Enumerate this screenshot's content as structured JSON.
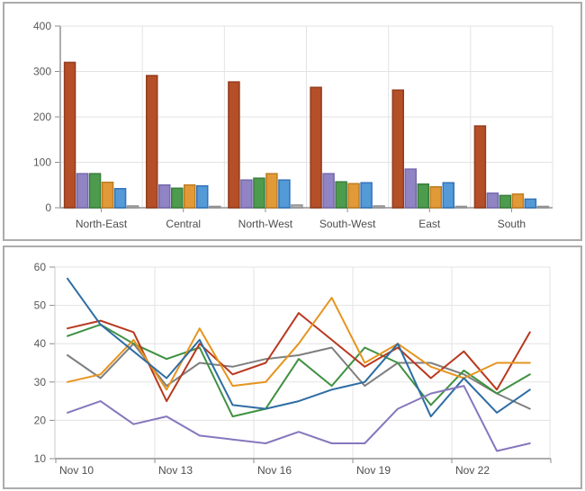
{
  "chart_data": [
    {
      "type": "bar",
      "title": "",
      "categories": [
        "North-East",
        "Central",
        "North-West",
        "South-West",
        "East",
        "South"
      ],
      "series": [
        {
          "name": "sienna",
          "color": "#b44f28",
          "border": "#933d1d",
          "values": [
            320,
            291,
            277,
            265,
            259,
            180
          ]
        },
        {
          "name": "purple",
          "color": "#9184c4",
          "border": "#746aae",
          "values": [
            75,
            50,
            61,
            75,
            85,
            32
          ]
        },
        {
          "name": "green",
          "color": "#4d9b4d",
          "border": "#3c7d3c",
          "values": [
            75,
            43,
            65,
            57,
            52,
            27
          ]
        },
        {
          "name": "orange",
          "color": "#e29a39",
          "border": "#bf7d20",
          "values": [
            56,
            50,
            75,
            53,
            46,
            30
          ]
        },
        {
          "name": "blue",
          "color": "#539ad7",
          "border": "#3573b9",
          "values": [
            42,
            48,
            61,
            55,
            55,
            19
          ]
        },
        {
          "name": "gray",
          "color": "#b0b0b0",
          "border": "#939393",
          "values": [
            4,
            3,
            6,
            4,
            3,
            3
          ]
        }
      ],
      "ylim": [
        0,
        400
      ],
      "yticks": [
        0,
        100,
        200,
        300,
        400
      ],
      "xlabel": "",
      "ylabel": "",
      "grid": true,
      "legend": "none"
    },
    {
      "type": "line",
      "title": "",
      "n_points": 15,
      "x_tick_labels": [
        "Nov 10",
        "Nov 13",
        "Nov 16",
        "Nov 19",
        "Nov 22"
      ],
      "x_tick_indices": [
        0,
        3,
        6,
        9,
        12
      ],
      "series": [
        {
          "name": "gray",
          "color": "#7f7f7f",
          "values": [
            37,
            31,
            40,
            29,
            35,
            34,
            36,
            37,
            39,
            29,
            35,
            35,
            32,
            27,
            23
          ]
        },
        {
          "name": "green",
          "color": "#3f9142",
          "values": [
            42,
            45,
            40,
            36,
            39,
            21,
            23,
            36,
            29,
            39,
            35,
            24,
            33,
            27,
            32
          ]
        },
        {
          "name": "red",
          "color": "#b8391f",
          "values": [
            44,
            46,
            43,
            25,
            40,
            32,
            35,
            48,
            41,
            34,
            39,
            31,
            38,
            28,
            43
          ]
        },
        {
          "name": "orange",
          "color": "#e6941e",
          "values": [
            30,
            32,
            41,
            28,
            44,
            29,
            30,
            40,
            52,
            35,
            40,
            34,
            31,
            35,
            35
          ]
        },
        {
          "name": "blue",
          "color": "#2e6da4",
          "values": [
            57,
            45,
            38,
            31,
            41,
            24,
            23,
            25,
            28,
            30,
            40,
            21,
            31,
            22,
            28
          ]
        },
        {
          "name": "purple",
          "color": "#8677bd",
          "values": [
            22,
            25,
            19,
            21,
            16,
            15,
            14,
            17,
            14,
            14,
            23,
            27,
            29,
            12,
            14
          ]
        }
      ],
      "ylim": [
        10,
        60
      ],
      "yticks": [
        10,
        20,
        30,
        40,
        50,
        60
      ],
      "xlabel": "",
      "ylabel": "",
      "grid": true,
      "legend": "none"
    }
  ],
  "colors": {
    "grid_line": "#e3e3e3",
    "axis_line": "#adadad",
    "tick_mark": "#8c8c8c",
    "panel_border": "#ababab",
    "label_text": "#595959"
  }
}
